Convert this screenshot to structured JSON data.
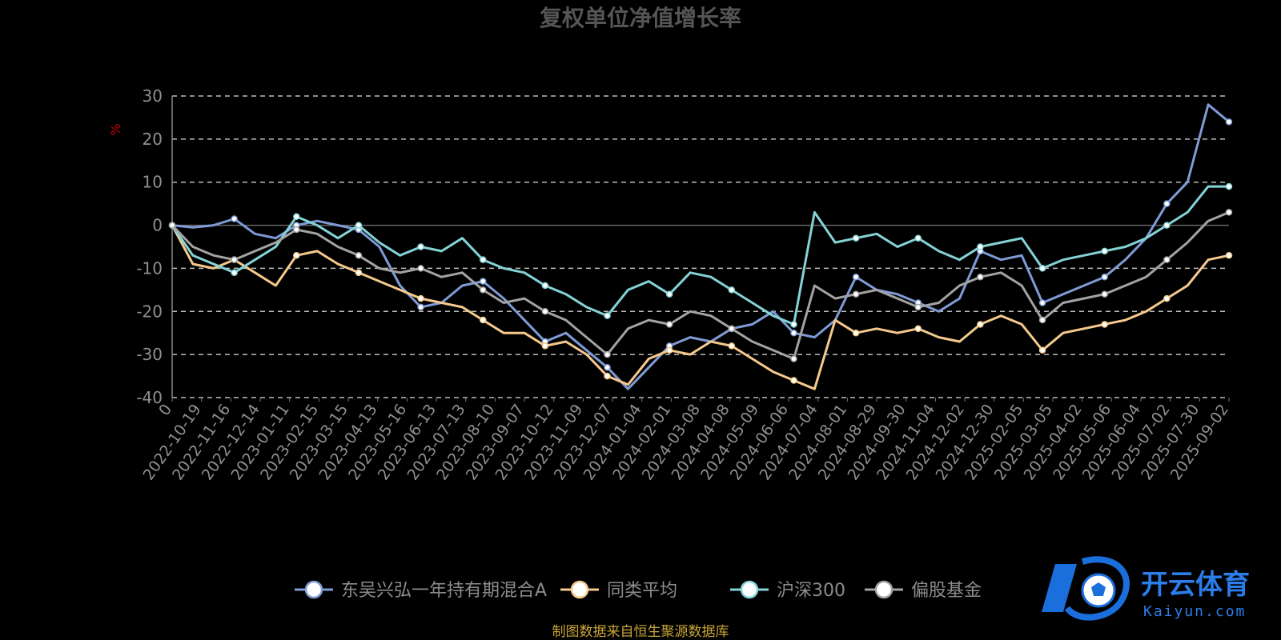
{
  "chart_data": {
    "type": "line",
    "title": "复权单位净值增长率",
    "ylabel": "%",
    "ylim": [
      -40,
      30
    ],
    "yticks": [
      "30",
      "20",
      "10",
      "0",
      "-10",
      "-20",
      "-30",
      "-40"
    ],
    "grid": true,
    "legend_position": "bottom",
    "x_tick_labels": [
      "0",
      "2022-10-19",
      "2022-11-16",
      "2022-12-14",
      "2023-01-11",
      "2023-02-15",
      "2023-03-15",
      "2023-04-13",
      "2023-05-16",
      "2023-06-13",
      "2023-07-13",
      "2023-08-10",
      "2023-09-07",
      "2023-10-12",
      "2023-11-09",
      "2023-12-07",
      "2024-01-04",
      "2024-02-01",
      "2024-03-08",
      "2024-04-08",
      "2024-05-09",
      "2024-06-06",
      "2024-07-04",
      "2024-08-01",
      "2024-08-29",
      "2024-09-30",
      "2024-11-04",
      "2024-12-02",
      "2024-12-30",
      "2025-02-05",
      "2025-03-05",
      "2025-04-02",
      "2025-05-06",
      "2025-06-04",
      "2025-07-02",
      "2025-07-30",
      "2025-09-02"
    ],
    "series": [
      {
        "name": "东吴兴弘一年持有期混合A",
        "color": "#7f9bd6",
        "values": [
          0,
          -0.5,
          0,
          1.5,
          -2,
          -3,
          0,
          1,
          0,
          -1,
          -5,
          -14,
          -19,
          -18,
          -14,
          -13,
          -17,
          -22,
          -27,
          -25,
          -29,
          -33,
          -38,
          -33,
          -28,
          -26,
          -27,
          -24,
          -23,
          -20,
          -25,
          -26,
          -22,
          -12,
          -15,
          -16,
          -18,
          -20,
          -17,
          -6,
          -8,
          -7,
          -18,
          -16,
          -14,
          -12,
          -8,
          -3,
          5,
          10,
          28,
          24
        ]
      },
      {
        "name": "同类平均",
        "color": "#f5c98c",
        "values": [
          0,
          -9,
          -10,
          -8,
          -11,
          -14,
          -7,
          -6,
          -9,
          -11,
          -13,
          -15,
          -17,
          -18,
          -19,
          -22,
          -25,
          -25,
          -28,
          -27,
          -30,
          -35,
          -37,
          -31,
          -29,
          -30,
          -27,
          -28,
          -31,
          -34,
          -36,
          -38,
          -22,
          -25,
          -24,
          -25,
          -24,
          -26,
          -27,
          -23,
          -21,
          -23,
          -29,
          -25,
          -24,
          -23,
          -22,
          -20,
          -17,
          -14,
          -8,
          -7
        ]
      },
      {
        "name": "沪深300",
        "color": "#84d3d6",
        "values": [
          0,
          -7,
          -9,
          -11,
          -8,
          -5,
          2,
          0,
          -3,
          0,
          -4,
          -7,
          -5,
          -6,
          -3,
          -8,
          -10,
          -11,
          -14,
          -16,
          -19,
          -21,
          -15,
          -13,
          -16,
          -11,
          -12,
          -15,
          -18,
          -21,
          -23,
          3,
          -4,
          -3,
          -2,
          -5,
          -3,
          -6,
          -8,
          -5,
          -4,
          -3,
          -10,
          -8,
          -7,
          -6,
          -5,
          -3,
          0,
          3,
          9,
          9
        ]
      },
      {
        "name": "偏股基金",
        "color": "#a3a3a3",
        "values": [
          0,
          -5,
          -7,
          -8,
          -6,
          -4,
          -1,
          -2,
          -5,
          -7,
          -10,
          -11,
          -10,
          -12,
          -11,
          -15,
          -18,
          -17,
          -20,
          -22,
          -26,
          -30,
          -24,
          -22,
          -23,
          -20,
          -21,
          -24,
          -27,
          -29,
          -31,
          -14,
          -17,
          -16,
          -15,
          -17,
          -19,
          -18,
          -14,
          -12,
          -11,
          -14,
          -22,
          -18,
          -17,
          -16,
          -14,
          -12,
          -8,
          -4,
          1,
          3
        ]
      }
    ]
  },
  "footer": {
    "source_note": "制图数据来自恒生聚源数据库"
  },
  "watermark": {
    "brand_cn": "开云体育",
    "brand_en": "Kaiyun.com"
  }
}
